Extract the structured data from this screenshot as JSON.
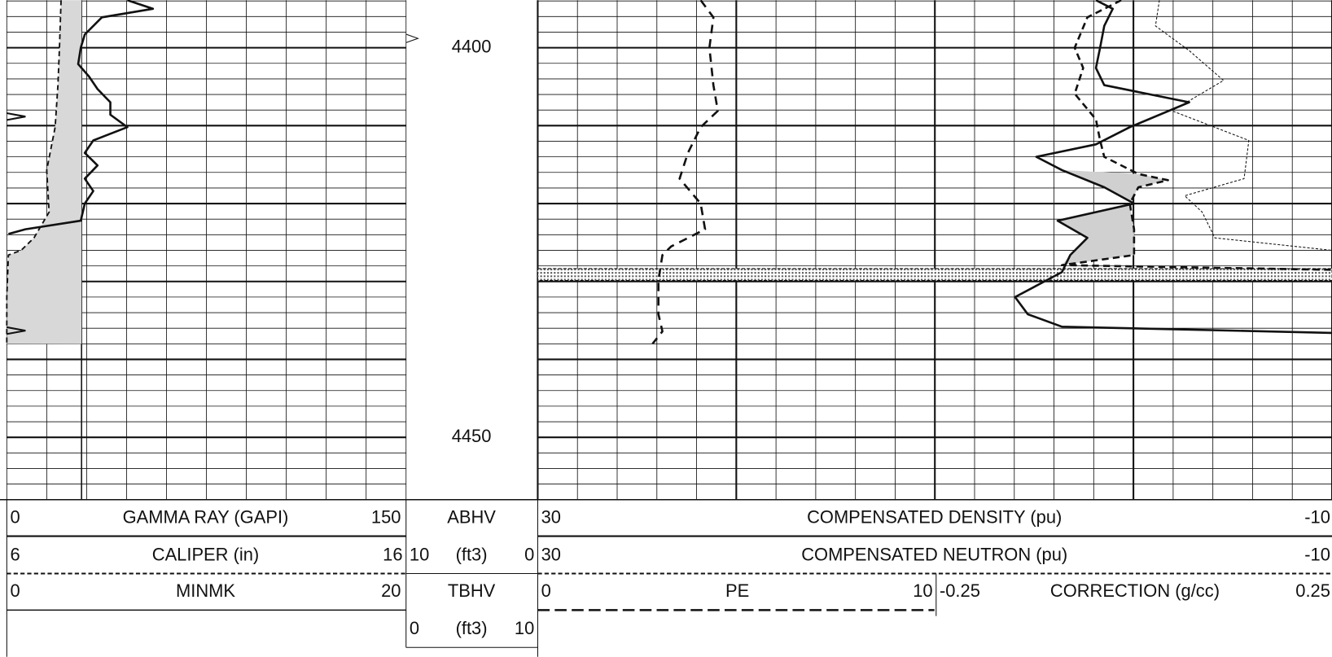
{
  "depth": {
    "ylim": [
      4393.9,
      4458
    ],
    "labels": [
      4400,
      4450
    ]
  },
  "header": {
    "gamma_ray": {
      "left": 0,
      "label": "GAMMA RAY (GAPI)",
      "right": 150
    },
    "caliper": {
      "left": 6,
      "label": "CALIPER (in)",
      "right": 16
    },
    "minmk": {
      "left": 0,
      "label": "MINMK",
      "right": 20
    },
    "abhv": {
      "label": "ABHV",
      "left": 10,
      "unit": "(ft3)",
      "right": 0
    },
    "tbhv": {
      "label": "TBHV",
      "left": 0,
      "unit": "(ft3)",
      "right": 10
    },
    "density": {
      "left": 30,
      "label": "COMPENSATED DENSITY (pu)",
      "right": -10
    },
    "neutron": {
      "left": 30,
      "label": "COMPENSATED NEUTRON (pu)",
      "right": -10
    },
    "pe": {
      "left": 0,
      "label": "PE",
      "right": 10
    },
    "correction": {
      "left": -0.25,
      "label": "CORRECTION (g/cc)",
      "right": 0.25
    }
  },
  "curves": {
    "gamma_ray": {
      "depth": [
        4393.9,
        4395.0,
        4396.1,
        4398.3,
        4400,
        4402.1,
        4403.7,
        4405.3,
        4407.0,
        4408.6,
        4410.2,
        4411.9,
        4413.5,
        4415.1,
        4416.8,
        4418.4,
        4420.0,
        4422.2,
        4423.3,
        4423.9
      ],
      "values": [
        45.3,
        54.9,
        35.7,
        29.3,
        27.8,
        26.8,
        30.9,
        34.1,
        38.9,
        38.9,
        45.3,
        32.5,
        29.3,
        34.1,
        29.3,
        32.5,
        29.3,
        27.8,
        7,
        0.6
      ]
    },
    "caliper": {
      "depth": [
        4393.9,
        4400,
        4404.8,
        4410.2,
        4415.7,
        4421.1,
        4424.4,
        4426.0,
        4426.6,
        4432.0,
        4438.0
      ],
      "values": [
        7.36,
        7.32,
        7.28,
        7.21,
        7.0,
        7.06,
        6.68,
        6.36,
        6.04,
        6.0,
        6.0
      ]
    },
    "pe": {
      "depth": [
        4393.9,
        4396.1,
        4400,
        4404.8,
        4408.1,
        4410.2,
        4413.5,
        4416.8,
        4420.0,
        4423.3,
        4425.5,
        4426.6,
        4429.8,
        4434.2,
        4436.4,
        4438.0
      ],
      "values": [
        4.09,
        4.41,
        4.31,
        4.41,
        4.52,
        4.09,
        3.77,
        3.56,
        4.09,
        4.2,
        3.35,
        3.13,
        3.03,
        3.03,
        3.13,
        2.88
      ]
    },
    "density": {
      "depth": [
        4393.9,
        4395.0,
        4397.2,
        4400,
        4402.6,
        4404.8,
        4407.0,
        4410.2,
        4412.4,
        4414.0,
        4415.7,
        4417.9,
        4420.0,
        4422.2,
        4424.4,
        4426.6,
        4428.8,
        4432.0,
        4434.2,
        4435.8,
        4436.6
      ],
      "values": [
        1.89,
        1.04,
        1.47,
        1.68,
        1.89,
        1.47,
        -2.81,
        0.18,
        1.89,
        4.89,
        3.6,
        1.47,
        -0.03,
        3.82,
        2.32,
        3.18,
        3.6,
        5.96,
        5.32,
        3.6,
        -10
      ]
    },
    "neutron": {
      "depth": [
        4393.9,
        4396.1,
        4400,
        4402.6,
        4405.9,
        4409.2,
        4411.9,
        4414.0,
        4416.2,
        4417.0,
        4417.9,
        4420.0,
        4423.3,
        4426.6,
        4427.9,
        4428.5
      ],
      "values": [
        0.61,
        2.32,
        2.96,
        2.53,
        2.96,
        1.89,
        1.68,
        1.47,
        -0.25,
        -1.74,
        -0.25,
        0.18,
        -0.03,
        -0.03,
        3.6,
        -10
      ]
    },
    "correction": {
      "depth": [
        4393.9,
        4397.2,
        4400.4,
        4404.2,
        4408.1,
        4411.9,
        4416.8,
        4419.0,
        4421.1,
        4424.4,
        4426.0
      ],
      "values": [
        0.032,
        0.027,
        0.07,
        0.113,
        0.048,
        0.145,
        0.139,
        0.064,
        0.086,
        0.102,
        0.25
      ]
    }
  }
}
